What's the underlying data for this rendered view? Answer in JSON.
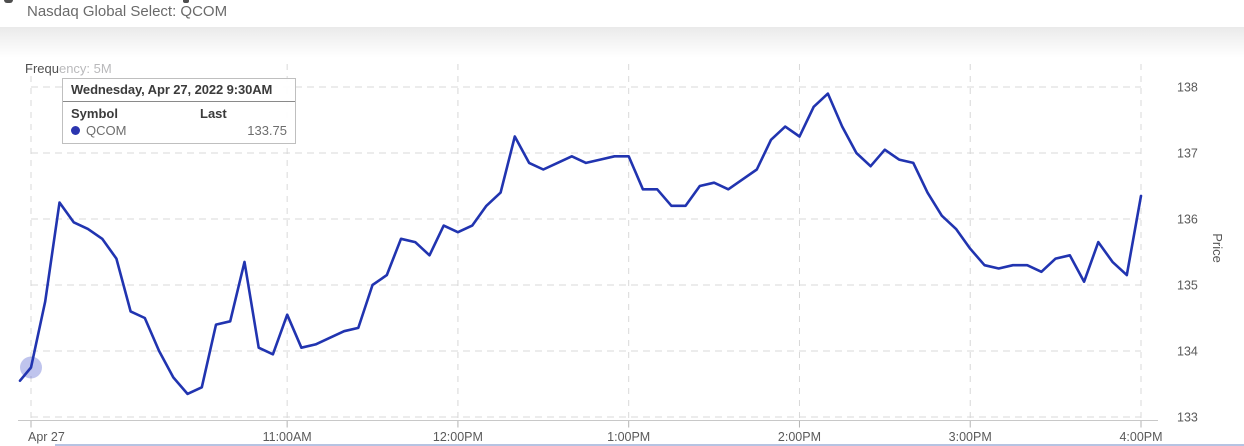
{
  "page": {
    "subtitle": "Nasdaq Global Select: QCOM",
    "frequency_prefix": "Frequ",
    "frequency_suffix": "ency: 5M"
  },
  "tooltip": {
    "title": "Wednesday, Apr 27, 2022 9:30AM",
    "symbol_header": "Symbol",
    "last_header": "Last",
    "rows": [
      {
        "symbol": "QCOM",
        "last": "133.75",
        "dot_color": "#2b35af"
      }
    ]
  },
  "chart_data": {
    "type": "line",
    "title": "",
    "xlabel": "",
    "ylabel": "Price",
    "grid": "dashed",
    "legend_position": "none",
    "x_tick_labels": [
      "Apr 27",
      "11:00AM",
      "12:00PM",
      "1:00PM",
      "2:00PM",
      "3:00PM",
      "4:00PM"
    ],
    "y_ticks": [
      133,
      134,
      135,
      136,
      137,
      138
    ],
    "ylim": [
      132.95,
      138.4
    ],
    "x": [
      "9:25AM",
      "9:30AM",
      "9:35AM",
      "9:40AM",
      "9:45AM",
      "9:50AM",
      "9:55AM",
      "10:00AM",
      "10:05AM",
      "10:10AM",
      "10:15AM",
      "10:20AM",
      "10:25AM",
      "10:30AM",
      "10:35AM",
      "10:40AM",
      "10:45AM",
      "10:50AM",
      "10:55AM",
      "11:00AM",
      "11:05AM",
      "11:10AM",
      "11:15AM",
      "11:20AM",
      "11:25AM",
      "11:30AM",
      "11:35AM",
      "11:40AM",
      "11:45AM",
      "11:50AM",
      "11:55AM",
      "12:00PM",
      "12:05PM",
      "12:10PM",
      "12:15PM",
      "12:20PM",
      "12:25PM",
      "12:30PM",
      "12:35PM",
      "12:40PM",
      "12:45PM",
      "12:50PM",
      "12:55PM",
      "1:00PM",
      "1:05PM",
      "1:10PM",
      "1:15PM",
      "1:20PM",
      "1:25PM",
      "1:30PM",
      "1:35PM",
      "1:40PM",
      "1:45PM",
      "1:50PM",
      "1:55PM",
      "2:00PM",
      "2:05PM",
      "2:10PM",
      "2:15PM",
      "2:20PM",
      "2:25PM",
      "2:30PM",
      "2:35PM",
      "2:40PM",
      "2:45PM",
      "2:50PM",
      "2:55PM",
      "3:00PM",
      "3:05PM",
      "3:10PM",
      "3:15PM",
      "3:20PM",
      "3:25PM",
      "3:30PM",
      "3:35PM",
      "3:40PM",
      "3:45PM",
      "3:50PM",
      "3:55PM",
      "4:00PM"
    ],
    "series": [
      {
        "name": "QCOM",
        "color": "#2134b0",
        "values": [
          133.55,
          133.75,
          134.75,
          136.25,
          135.95,
          135.85,
          135.7,
          135.4,
          134.6,
          134.5,
          134.0,
          133.6,
          133.35,
          133.45,
          134.4,
          134.45,
          135.35,
          134.05,
          133.95,
          134.55,
          134.05,
          134.1,
          134.2,
          134.3,
          134.35,
          135.0,
          135.15,
          135.7,
          135.65,
          135.45,
          135.9,
          135.8,
          135.9,
          136.2,
          136.4,
          137.25,
          136.85,
          136.75,
          136.85,
          136.95,
          136.85,
          136.9,
          136.95,
          136.95,
          136.45,
          136.45,
          136.2,
          136.2,
          136.5,
          136.55,
          136.45,
          136.6,
          136.75,
          137.2,
          137.4,
          137.25,
          137.7,
          137.9,
          137.4,
          137.0,
          136.8,
          137.05,
          136.9,
          136.85,
          136.4,
          136.05,
          135.85,
          135.55,
          135.3,
          135.25,
          135.3,
          135.3,
          135.2,
          135.4,
          135.45,
          135.05,
          135.65,
          135.35,
          135.15,
          136.35
        ]
      }
    ],
    "highlighted_point": {
      "time": "9:30AM",
      "value": 133.75,
      "marker_color": "#2b3cc4",
      "marker_opacity": 0.3
    },
    "colors": {
      "gridline": "#d8d8d8",
      "axis_line": "#c8c8c8",
      "tick": "#b3b3b3",
      "tick_label": "#5a5a5a"
    }
  }
}
